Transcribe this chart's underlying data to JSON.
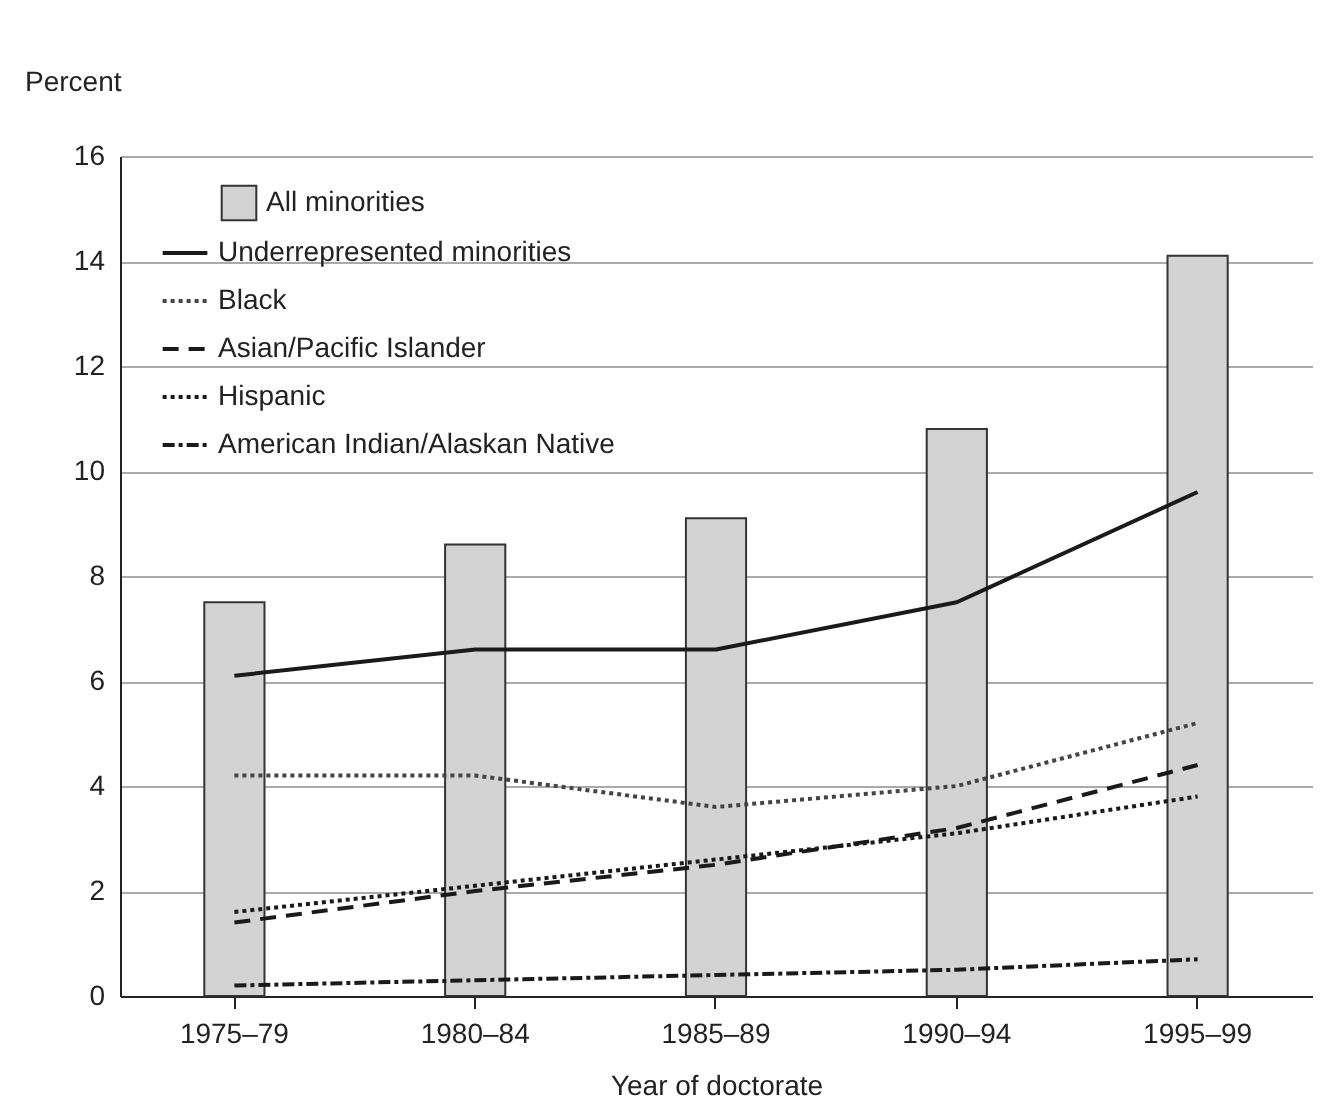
{
  "chart_data": {
    "type": "bar",
    "ylabel": "Percent",
    "xlabel": "Year of doctorate",
    "categories": [
      "1975–79",
      "1980–84",
      "1985–89",
      "1990–94",
      "1995–99"
    ],
    "series": [
      {
        "name": "All minorities",
        "color": "#d3d3d3",
        "values": [
          7.5,
          8.6,
          9.1,
          10.8,
          14.1
        ]
      },
      {
        "name": "Underrepresented minorities",
        "type": "line",
        "color": "#1a1a1a",
        "line_style": "solid",
        "values": [
          6.1,
          6.6,
          6.6,
          7.5,
          9.6
        ]
      },
      {
        "name": "Black",
        "type": "line",
        "color": "#444444",
        "line_style": "dotted",
        "values": [
          4.2,
          4.2,
          3.6,
          4.0,
          5.2
        ]
      },
      {
        "name": "Asian/Pacific Islander",
        "type": "line",
        "color": "#1a1a1a",
        "line_style": "dashed",
        "values": [
          1.4,
          2.0,
          2.5,
          3.2,
          4.4
        ]
      },
      {
        "name": "Hispanic",
        "type": "line",
        "color": "#1a1a1a",
        "line_style": "dotted",
        "values": [
          1.6,
          2.1,
          2.6,
          3.1,
          3.8
        ]
      },
      {
        "name": "American Indian/Alaskan Native",
        "type": "line",
        "color": "#1a1a1a",
        "line_style": "dashdot",
        "values": [
          0.2,
          0.3,
          0.4,
          0.5,
          0.7
        ]
      }
    ],
    "ylim": [
      0,
      16
    ],
    "yticks": [
      0,
      2,
      4,
      6,
      8,
      10,
      12,
      14,
      16
    ],
    "grid": "y",
    "legend": "top left"
  }
}
